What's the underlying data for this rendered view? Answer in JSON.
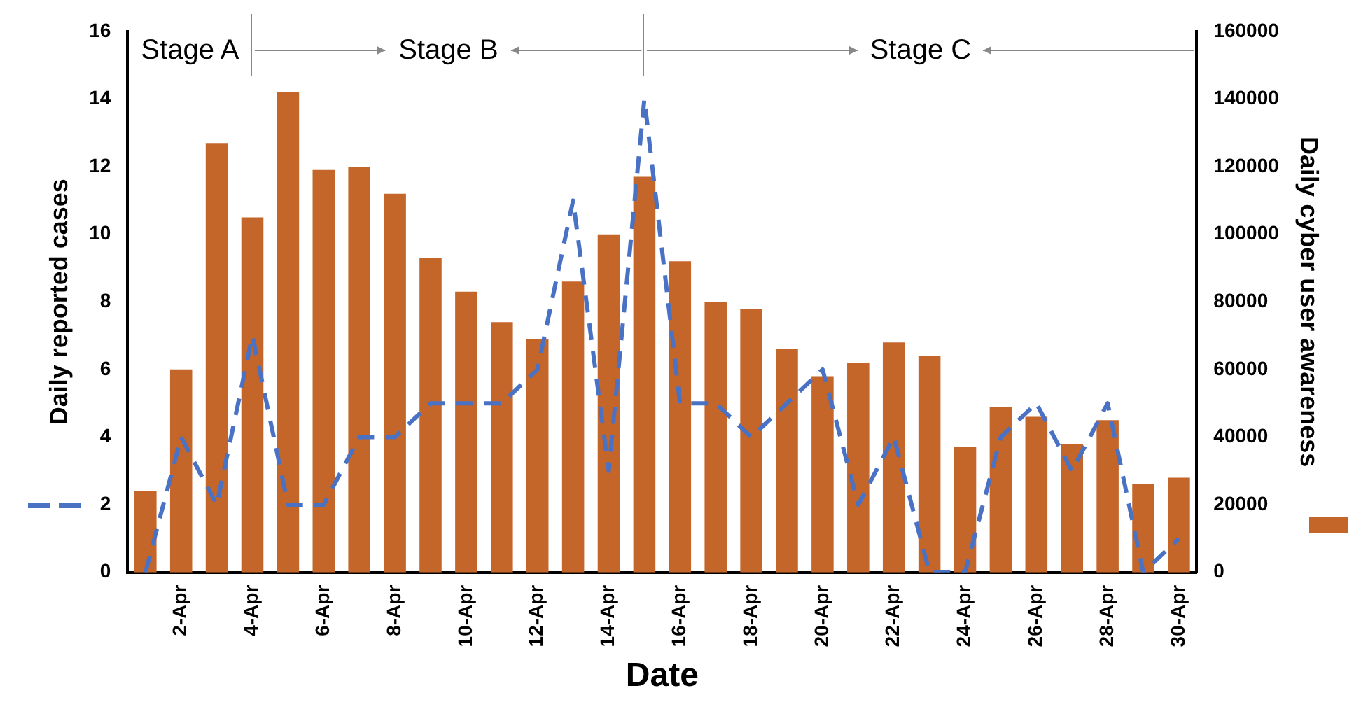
{
  "chart_data": {
    "type": "bar",
    "xlabel": "Date",
    "ylabel": "Daily reported cases",
    "y2label": "Daily cyber user awareness",
    "categories": [
      null,
      "2-Apr",
      null,
      "4-Apr",
      null,
      "6-Apr",
      null,
      "8-Apr",
      null,
      "10-Apr",
      null,
      "12-Apr",
      null,
      "14-Apr",
      null,
      "16-Apr",
      null,
      "18-Apr",
      null,
      "20-Apr",
      null,
      "22-Apr",
      null,
      "24-Apr",
      null,
      "26-Apr",
      null,
      "28-Apr",
      null,
      "30-Apr"
    ],
    "series": [
      {
        "axis": "y2",
        "color": "#c4652a",
        "values": [
          24000,
          60000,
          127000,
          105000,
          142000,
          119000,
          120000,
          112000,
          93000,
          83000,
          74000,
          69000,
          86000,
          100000,
          117000,
          92000,
          80000,
          78000,
          66000,
          58000,
          62000,
          68000,
          64000,
          37000,
          49000,
          46000,
          38000,
          45000,
          26000,
          28000
        ]
      },
      {
        "type": "line",
        "axis": "y",
        "color": "#4a72c4",
        "line_style": "dashed",
        "marker": "none",
        "values": [
          0,
          4,
          2,
          7,
          2,
          2,
          4,
          4,
          5,
          5,
          5,
          6,
          11,
          3,
          14,
          5,
          5,
          4,
          5,
          6,
          2,
          4,
          0,
          0,
          4,
          5,
          3,
          5,
          0,
          1
        ]
      }
    ],
    "ylim": [
      0,
      16
    ],
    "yticks": [
      0,
      2,
      4,
      6,
      8,
      10,
      12,
      14,
      16
    ],
    "y2lim": [
      0,
      160000
    ],
    "y2ticks": [
      0,
      20000,
      40000,
      60000,
      80000,
      100000,
      120000,
      140000,
      160000
    ],
    "grid": false,
    "legend": false,
    "annotations": [
      "Stage A",
      "Stage B",
      "Stage C"
    ]
  }
}
